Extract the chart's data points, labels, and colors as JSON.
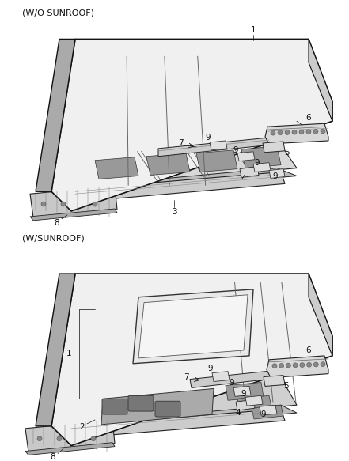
{
  "background_color": "#ffffff",
  "section1_label": "(W/O SUNROOF)",
  "section2_label": "(W/SUNROOF)",
  "label_fontsize": 8,
  "number_fontsize": 7.5,
  "line_color": "#222222",
  "light_gray": "#e8e8e8",
  "mid_gray": "#c8c8c8",
  "dark_gray": "#888888",
  "edge_color": "#111111"
}
